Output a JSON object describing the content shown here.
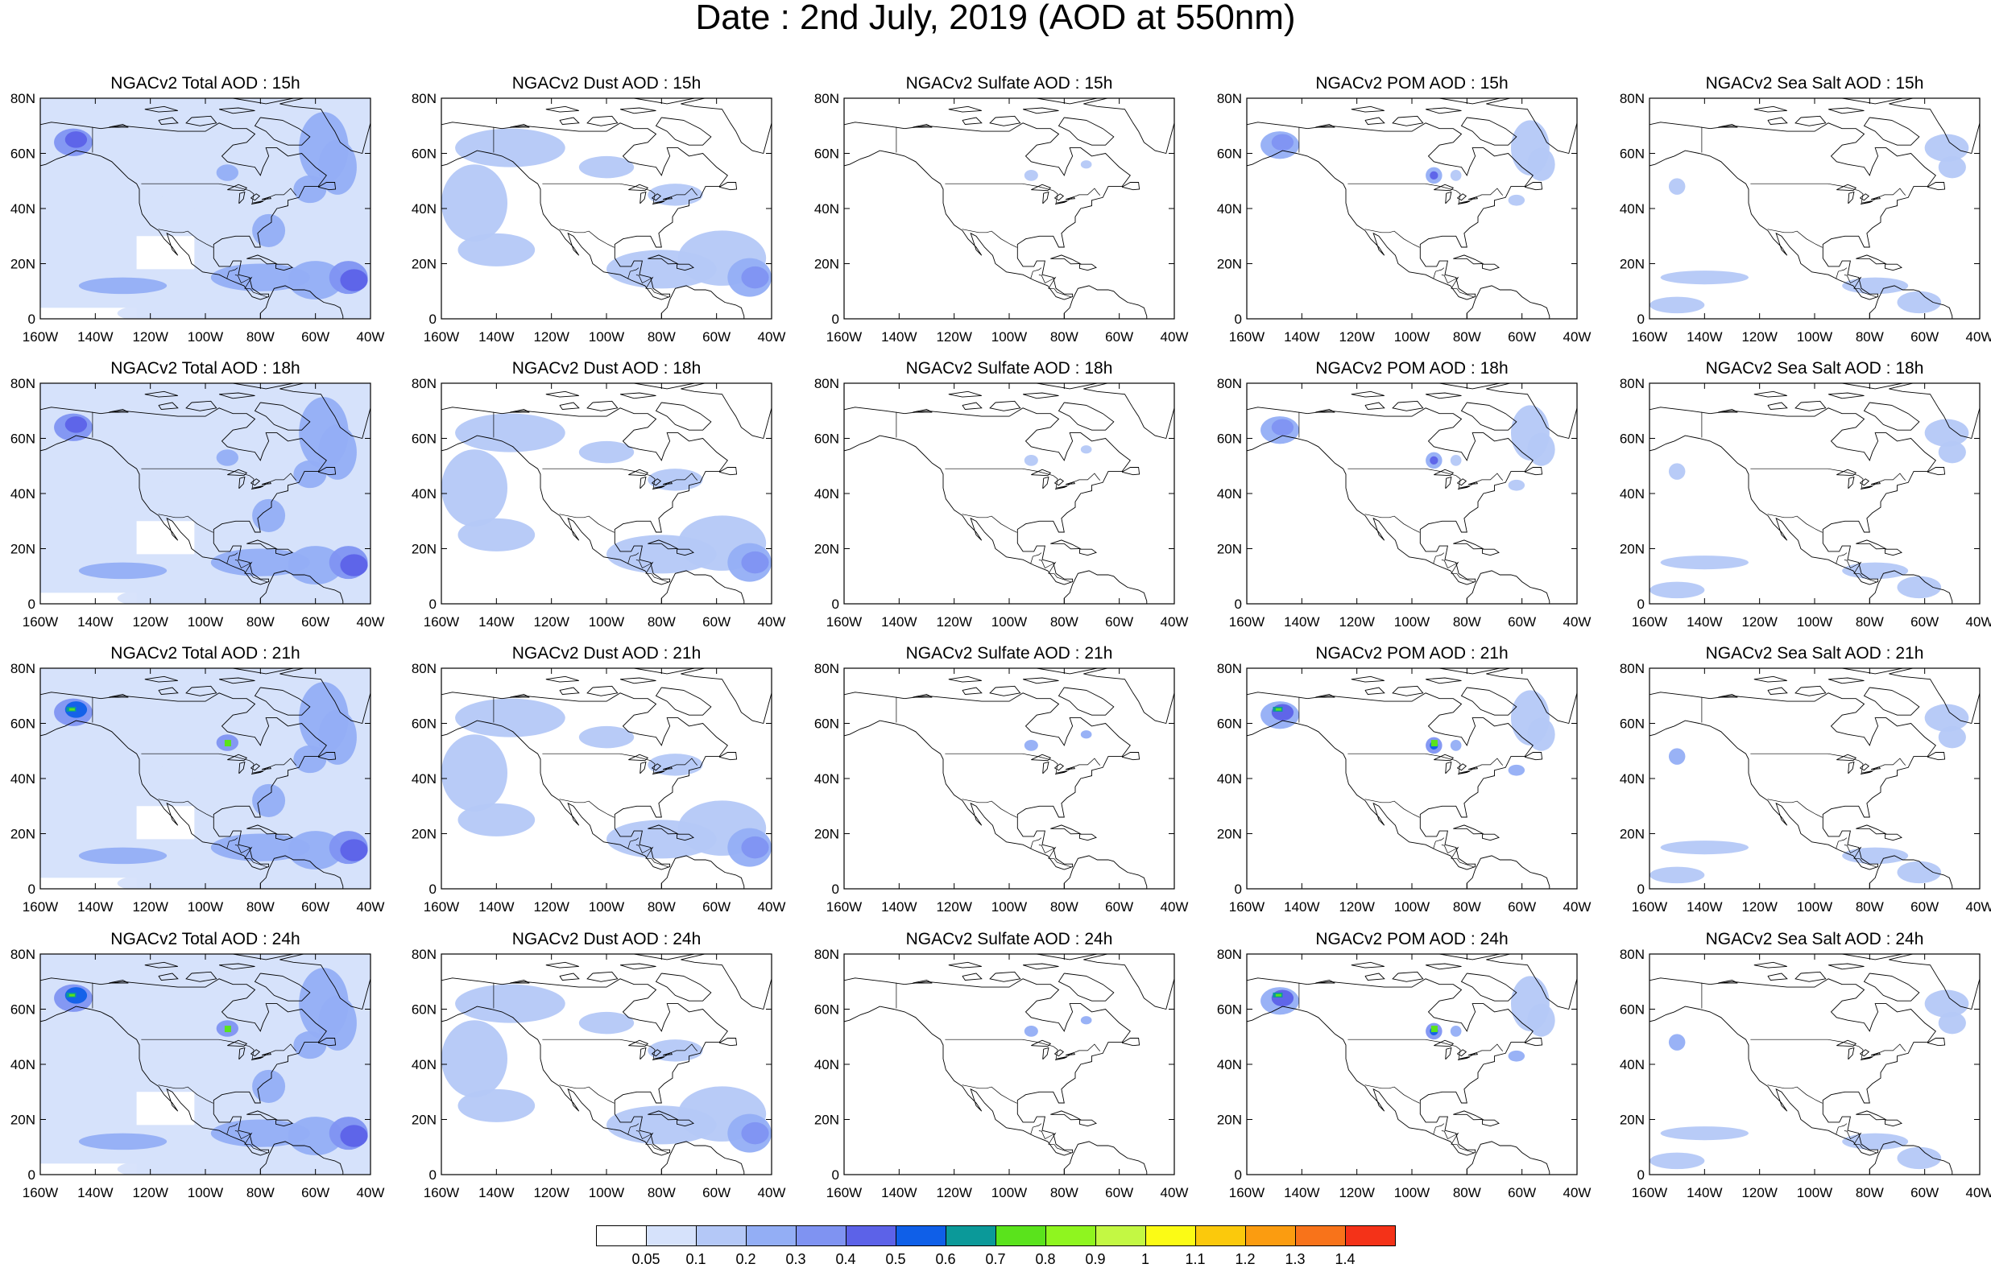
{
  "title": "Date : 2nd July, 2019 (AOD at 550nm)",
  "x_ticks": [
    "160W",
    "140W",
    "120W",
    "100W",
    "80W",
    "60W",
    "40W"
  ],
  "y_ticks": [
    "80N",
    "60N",
    "40N",
    "20N",
    "0"
  ],
  "columns": [
    {
      "id": "total",
      "name": "Total"
    },
    {
      "id": "dust",
      "name": "Dust"
    },
    {
      "id": "sulfate",
      "name": "Sulfate"
    },
    {
      "id": "pom",
      "name": "POM"
    },
    {
      "id": "seasalt",
      "name": "Sea Salt"
    }
  ],
  "panels": [
    [
      "NGACv2 Total AOD : 15h",
      "NGACv2 Dust AOD : 15h",
      "NGACv2 Sulfate AOD : 15h",
      "NGACv2 POM AOD : 15h",
      "NGACv2 Sea Salt AOD : 15h"
    ],
    [
      "NGACv2 Total AOD : 18h",
      "NGACv2 Dust AOD : 18h",
      "NGACv2 Sulfate AOD : 18h",
      "NGACv2 POM AOD : 18h",
      "NGACv2 Sea Salt AOD : 18h"
    ],
    [
      "NGACv2 Total AOD : 21h",
      "NGACv2 Dust AOD : 21h",
      "NGACv2 Sulfate AOD : 21h",
      "NGACv2 POM AOD : 21h",
      "NGACv2 Sea Salt AOD : 21h"
    ],
    [
      "NGACv2 Total AOD : 24h",
      "NGACv2 Dust AOD : 24h",
      "NGACv2 Sulfate AOD : 24h",
      "NGACv2 POM AOD : 24h",
      "NGACv2 Sea Salt  AOD : 24h"
    ]
  ],
  "colorbar": {
    "labels": [
      "0.05",
      "0.1",
      "0.2",
      "0.3",
      "0.4",
      "0.5",
      "0.6",
      "0.7",
      "0.8",
      "0.9",
      "1",
      "1.1",
      "1.2",
      "1.3",
      "1.4"
    ],
    "colors": [
      "#ffffff",
      "#d6e2fb",
      "#b4c8f7",
      "#93aef5",
      "#7f93f2",
      "#5c62e8",
      "#0f5fe8",
      "#0b9999",
      "#5ae31c",
      "#8ff51f",
      "#c3f843",
      "#fbfb15",
      "#fbc90c",
      "#fb9c10",
      "#f8731a",
      "#f43218"
    ]
  },
  "colors": {
    "land_outline": "#000000",
    "light_blue": "#d6e2fb",
    "mid_blue": "#b4c8f7",
    "blue": "#93aef5"
  }
}
